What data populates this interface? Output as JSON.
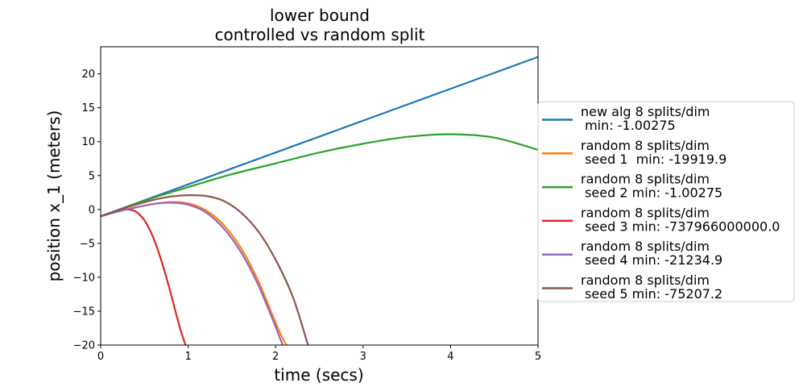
{
  "chart_data": {
    "type": "line",
    "title": "lower bound",
    "subtitle": "controlled vs random split",
    "xlabel": "time (secs)",
    "ylabel": "position x_1 (meters)",
    "xlim": [
      0,
      5
    ],
    "ylim": [
      -20,
      24
    ],
    "xticks": [
      0,
      1,
      2,
      3,
      4,
      5
    ],
    "yticks": [
      -20,
      -15,
      -10,
      -5,
      0,
      5,
      10,
      15,
      20
    ],
    "grid": false,
    "legend_position": "right, outside plot",
    "series": [
      {
        "name_lines": [
          "new alg 8 splits/dim",
          " min: -1.00275"
        ],
        "color": "#1f77b4",
        "x": [
          0,
          0.5,
          1,
          1.5,
          2,
          2.5,
          3,
          3.5,
          4,
          4.5,
          5
        ],
        "y": [
          -1,
          1.35,
          3.7,
          6.05,
          8.4,
          10.75,
          13.1,
          15.45,
          17.8,
          20.15,
          22.5
        ]
      },
      {
        "name_lines": [
          "random 8 splits/dim",
          " seed 1  min: -19919.9"
        ],
        "color": "#ff7f0e",
        "x": [
          0,
          0.2,
          0.4,
          0.6,
          0.8,
          1.0,
          1.2,
          1.4,
          1.6,
          1.8,
          2.0,
          2.1,
          2.13
        ],
        "y": [
          -1,
          -0.3,
          0.3,
          0.8,
          1.1,
          0.9,
          -0.1,
          -2.2,
          -5.6,
          -10.5,
          -16.7,
          -19.5,
          -20
        ]
      },
      {
        "name_lines": [
          "random 8 splits/dim",
          " seed 2 min: -1.00275"
        ],
        "color": "#2ca02c",
        "x": [
          0,
          0.5,
          1,
          1.5,
          2,
          2.5,
          3,
          3.5,
          4,
          4.5,
          5
        ],
        "y": [
          -1,
          1.3,
          3.3,
          5.2,
          6.8,
          8.4,
          9.7,
          10.7,
          11.1,
          10.6,
          8.8
        ]
      },
      {
        "name_lines": [
          "random 8 splits/dim",
          " seed 3 min: -737966000000.0"
        ],
        "color": "#d62728",
        "x": [
          0,
          0.1,
          0.2,
          0.3,
          0.4,
          0.5,
          0.6,
          0.7,
          0.8,
          0.9,
          0.97
        ],
        "y": [
          -1,
          -0.6,
          -0.2,
          0,
          -0.3,
          -1.6,
          -4.1,
          -7.8,
          -12.3,
          -17.2,
          -20
        ]
      },
      {
        "name_lines": [
          "random 8 splits/dim",
          " seed 4 min: -21234.9"
        ],
        "color": "#9467bd",
        "x": [
          0,
          0.2,
          0.4,
          0.6,
          0.8,
          1.0,
          1.2,
          1.4,
          1.6,
          1.8,
          2.0,
          2.08
        ],
        "y": [
          -1,
          -0.3,
          0.3,
          0.8,
          1.0,
          0.7,
          -0.4,
          -2.7,
          -6.2,
          -11.1,
          -17.3,
          -20
        ]
      },
      {
        "name_lines": [
          "random 8 splits/dim",
          " seed 5 min: -75207.2"
        ],
        "color": "#8c564b",
        "x": [
          0,
          0.2,
          0.4,
          0.6,
          0.8,
          1.0,
          1.2,
          1.4,
          1.6,
          1.8,
          2.0,
          2.2,
          2.37
        ],
        "y": [
          -1,
          -0.1,
          0.7,
          1.4,
          1.9,
          2.1,
          2.0,
          1.3,
          -0.4,
          -3.2,
          -7.4,
          -13.0,
          -20
        ]
      }
    ]
  }
}
